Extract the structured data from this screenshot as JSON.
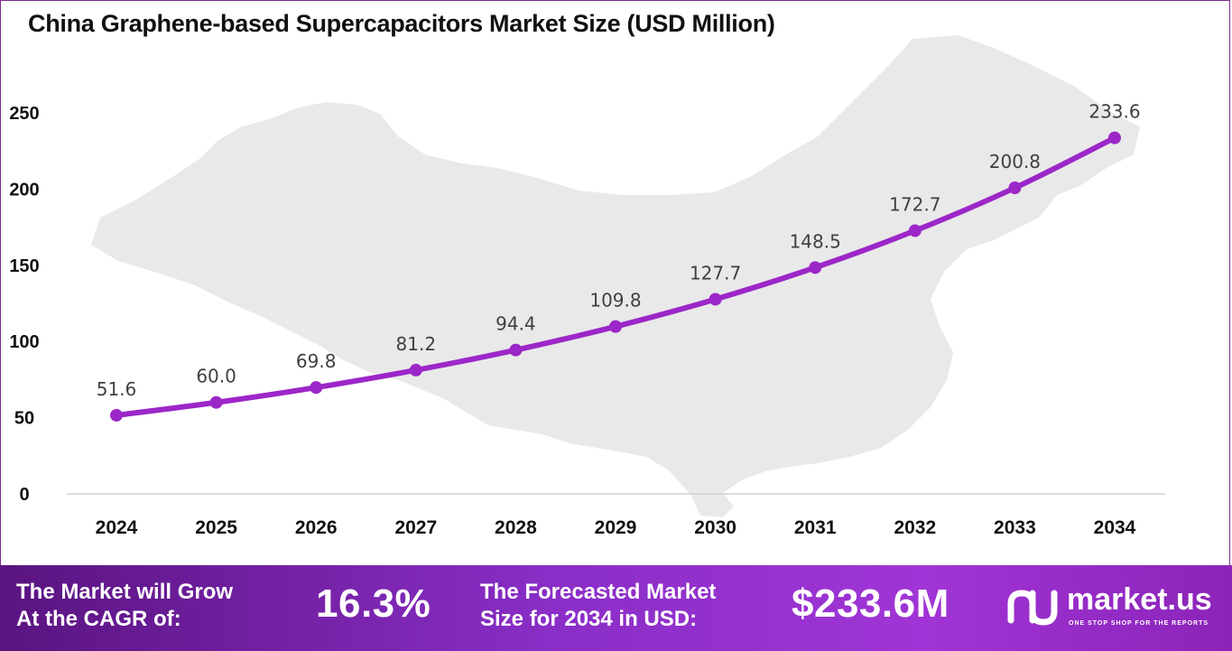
{
  "title": "China Graphene-based Supercapacitors Market Size (USD Million)",
  "chart_data": {
    "type": "line",
    "title": "China Graphene-based Supercapacitors Market Size (USD Million)",
    "xlabel": "",
    "ylabel": "",
    "categories": [
      "2024",
      "2025",
      "2026",
      "2027",
      "2028",
      "2029",
      "2030",
      "2031",
      "2032",
      "2033",
      "2034"
    ],
    "series": [
      {
        "values": [
          51.6,
          60.0,
          69.8,
          81.2,
          94.4,
          109.8,
          127.7,
          148.5,
          172.7,
          200.8,
          233.6
        ],
        "labels": [
          "51.6",
          "60.0",
          "69.8",
          "81.2",
          "94.4",
          "109.8",
          "127.7",
          "148.5",
          "172.7",
          "200.8",
          "233.6"
        ]
      }
    ],
    "yticks": [
      "0",
      "50",
      "100",
      "150",
      "200",
      "250"
    ],
    "ylim": [
      0,
      250
    ],
    "grid": false,
    "legend": "none",
    "line_color": "#9c27c8",
    "marker_color": "#9c27c8",
    "background_map": "china-map"
  },
  "footer": {
    "cagr_text_line1": "The Market will Grow",
    "cagr_text_line2": "At the CAGR of:",
    "cagr_value": "16.3%",
    "forecast_text_line1": "The Forecasted Market",
    "forecast_text_line2": "Size for 2034 in USD:",
    "forecast_value": "$233.6M",
    "brand_name": "market.us",
    "brand_tagline": "ONE STOP SHOP FOR THE REPORTS",
    "gradient_colors": [
      "#5a1480",
      "#a034d6"
    ]
  }
}
